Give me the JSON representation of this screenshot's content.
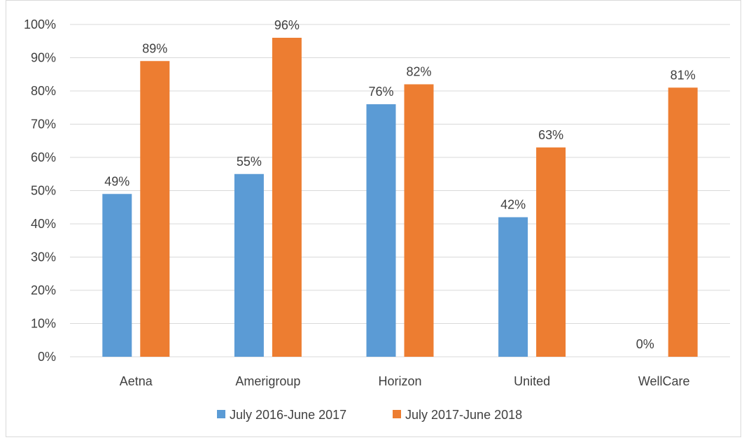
{
  "chart_data": {
    "type": "bar",
    "categories": [
      "Aetna",
      "Amerigroup",
      "Horizon",
      "United",
      "WellCare"
    ],
    "series": [
      {
        "name": "July 2016-June 2017",
        "values": [
          49,
          55,
          76,
          42,
          0
        ],
        "labels": [
          "49%",
          "55%",
          "76%",
          "42%",
          "0%"
        ],
        "color": "#5B9BD5"
      },
      {
        "name": "July 2017-June 2018",
        "values": [
          89,
          96,
          82,
          63,
          81
        ],
        "labels": [
          "89%",
          "96%",
          "82%",
          "63%",
          "81%"
        ],
        "color": "#ED7D31"
      }
    ],
    "ylim": [
      0,
      100
    ],
    "yticks": [
      "0%",
      "10%",
      "20%",
      "30%",
      "40%",
      "50%",
      "60%",
      "70%",
      "80%",
      "90%",
      "100%"
    ],
    "grid": true,
    "legend_position": "bottom",
    "title": "",
    "xlabel": "",
    "ylabel": ""
  }
}
